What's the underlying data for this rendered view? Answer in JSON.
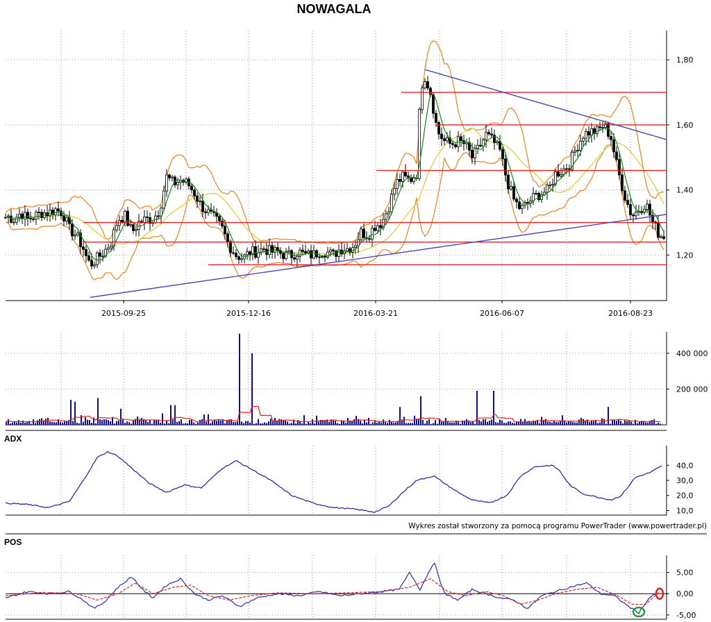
{
  "chart_data": [
    {
      "panel": "price",
      "type": "candlestick",
      "title": "NOWAGALA",
      "x_tick_labels": [
        "2015-09-25",
        "2015-12-16",
        "2016-03-21",
        "2016-06-07",
        "2016-08-23"
      ],
      "y_tick_labels": [
        "1,80",
        "1,60",
        "1,40",
        "1,20"
      ],
      "y_ticks": [
        1.8,
        1.6,
        1.4,
        1.2
      ],
      "ylim": [
        1.06,
        1.89
      ],
      "grid": true,
      "close_points": [
        [
          0,
          1.3
        ],
        [
          10,
          1.32
        ],
        [
          20,
          1.31
        ],
        [
          30,
          1.33
        ],
        [
          40,
          1.31
        ],
        [
          50,
          1.32
        ],
        [
          60,
          1.33
        ],
        [
          70,
          1.33
        ],
        [
          80,
          1.34
        ],
        [
          90,
          1.33
        ],
        [
          100,
          1.28
        ],
        [
          110,
          1.26
        ],
        [
          120,
          1.22
        ],
        [
          125,
          1.19
        ],
        [
          130,
          1.17
        ],
        [
          140,
          1.19
        ],
        [
          150,
          1.21
        ],
        [
          160,
          1.24
        ],
        [
          170,
          1.31
        ],
        [
          180,
          1.32
        ],
        [
          190,
          1.27
        ],
        [
          200,
          1.3
        ],
        [
          210,
          1.31
        ],
        [
          220,
          1.31
        ],
        [
          230,
          1.34
        ],
        [
          240,
          1.44
        ],
        [
          250,
          1.42
        ],
        [
          260,
          1.43
        ],
        [
          270,
          1.42
        ],
        [
          280,
          1.39
        ],
        [
          290,
          1.35
        ],
        [
          300,
          1.33
        ],
        [
          310,
          1.31
        ],
        [
          320,
          1.28
        ],
        [
          330,
          1.23
        ],
        [
          340,
          1.2
        ],
        [
          350,
          1.19
        ],
        [
          360,
          1.21
        ],
        [
          370,
          1.21
        ],
        [
          380,
          1.22
        ],
        [
          390,
          1.21
        ],
        [
          400,
          1.21
        ],
        [
          410,
          1.2
        ],
        [
          420,
          1.2
        ],
        [
          430,
          1.21
        ],
        [
          440,
          1.2
        ],
        [
          450,
          1.2
        ],
        [
          460,
          1.21
        ],
        [
          470,
          1.21
        ],
        [
          480,
          1.2
        ],
        [
          490,
          1.22
        ],
        [
          500,
          1.22
        ],
        [
          510,
          1.23
        ],
        [
          520,
          1.27
        ],
        [
          530,
          1.26
        ],
        [
          540,
          1.29
        ],
        [
          550,
          1.3
        ],
        [
          560,
          1.35
        ],
        [
          570,
          1.42
        ],
        [
          580,
          1.44
        ],
        [
          590,
          1.43
        ],
        [
          600,
          1.45
        ],
        [
          605,
          1.68
        ],
        [
          610,
          1.76
        ],
        [
          620,
          1.7
        ],
        [
          630,
          1.58
        ],
        [
          640,
          1.55
        ],
        [
          650,
          1.54
        ],
        [
          660,
          1.55
        ],
        [
          670,
          1.54
        ],
        [
          680,
          1.5
        ],
        [
          690,
          1.53
        ],
        [
          700,
          1.57
        ],
        [
          710,
          1.55
        ],
        [
          720,
          1.52
        ],
        [
          730,
          1.43
        ],
        [
          740,
          1.37
        ],
        [
          750,
          1.34
        ],
        [
          760,
          1.36
        ],
        [
          770,
          1.38
        ],
        [
          780,
          1.39
        ],
        [
          790,
          1.4
        ],
        [
          800,
          1.45
        ],
        [
          810,
          1.46
        ],
        [
          820,
          1.48
        ],
        [
          830,
          1.53
        ],
        [
          840,
          1.57
        ],
        [
          850,
          1.58
        ],
        [
          860,
          1.58
        ],
        [
          870,
          1.6
        ],
        [
          880,
          1.56
        ],
        [
          890,
          1.46
        ],
        [
          900,
          1.38
        ],
        [
          910,
          1.32
        ],
        [
          920,
          1.34
        ],
        [
          930,
          1.36
        ],
        [
          940,
          1.3
        ],
        [
          950,
          1.26
        ]
      ],
      "reference_levels": [
        {
          "y": 1.7,
          "x_start": 578,
          "x_end": 960
        },
        {
          "y": 1.6,
          "x_start": 628,
          "x_end": 960
        },
        {
          "y": 1.46,
          "x_start": 542,
          "x_end": 960
        },
        {
          "y": 1.3,
          "x_start": 120,
          "x_end": 960
        },
        {
          "y": 1.24,
          "x_start": 120,
          "x_end": 960
        },
        {
          "y": 1.17,
          "x_start": 300,
          "x_end": 960
        }
      ],
      "trendlines": [
        {
          "from": [
            130,
            1.07
          ],
          "to": [
            960,
            1.325
          ]
        },
        {
          "from": [
            612,
            1.77
          ],
          "to": [
            960,
            1.555
          ]
        }
      ],
      "series_colors": {
        "candles": "#000000",
        "sma_short": "#118a11",
        "sma_long": "#d7d040",
        "bands": "#e88a2e",
        "levels": "#e02020",
        "trendlines": "#3c3ca8"
      }
    },
    {
      "panel": "volume",
      "type": "bar",
      "y_tick_labels": [
        "400 000",
        "200 000"
      ],
      "y_ticks": [
        400000,
        200000
      ],
      "ylim": [
        0,
        520000
      ],
      "spikes": [
        [
          102,
          140000
        ],
        [
          108,
          130000
        ],
        [
          142,
          150000
        ],
        [
          175,
          90000
        ],
        [
          245,
          110000
        ],
        [
          253,
          110000
        ],
        [
          344,
          510000
        ],
        [
          362,
          400000
        ],
        [
          576,
          100000
        ],
        [
          606,
          160000
        ],
        [
          686,
          190000
        ],
        [
          712,
          190000
        ],
        [
          876,
          100000
        ]
      ],
      "colors": {
        "bars": "#0a0a96",
        "average": "#e02020"
      }
    },
    {
      "panel": "ADX",
      "type": "line",
      "label": "ADX",
      "y_tick_labels": [
        "40,0",
        "30,0",
        "20,0",
        "10,0"
      ],
      "y_ticks": [
        40,
        30,
        20,
        10
      ],
      "ylim": [
        7,
        53
      ],
      "points": [
        [
          8,
          15
        ],
        [
          40,
          14
        ],
        [
          70,
          12
        ],
        [
          100,
          16
        ],
        [
          120,
          30
        ],
        [
          140,
          45
        ],
        [
          155,
          49
        ],
        [
          170,
          46
        ],
        [
          190,
          38
        ],
        [
          215,
          28
        ],
        [
          240,
          22
        ],
        [
          265,
          27
        ],
        [
          290,
          25
        ],
        [
          320,
          38
        ],
        [
          340,
          43
        ],
        [
          360,
          38
        ],
        [
          390,
          30
        ],
        [
          420,
          20
        ],
        [
          450,
          15
        ],
        [
          480,
          12
        ],
        [
          510,
          11
        ],
        [
          540,
          9
        ],
        [
          560,
          13
        ],
        [
          580,
          22
        ],
        [
          600,
          30
        ],
        [
          625,
          33
        ],
        [
          640,
          28
        ],
        [
          660,
          22
        ],
        [
          680,
          17
        ],
        [
          705,
          15
        ],
        [
          730,
          20
        ],
        [
          750,
          33
        ],
        [
          770,
          39
        ],
        [
          795,
          40
        ],
        [
          805,
          37
        ],
        [
          820,
          27
        ],
        [
          840,
          21
        ],
        [
          860,
          19
        ],
        [
          880,
          17
        ],
        [
          895,
          20
        ],
        [
          915,
          32
        ],
        [
          935,
          35
        ],
        [
          955,
          40
        ]
      ],
      "line_color": "#2a2aa8"
    },
    {
      "panel": "POS",
      "type": "line",
      "label": "POS",
      "y_tick_labels": [
        "5,00",
        "0,00",
        "-5,00"
      ],
      "y_ticks": [
        5,
        0,
        -5
      ],
      "ylim": [
        -6,
        9
      ],
      "series": [
        {
          "points": [
            [
              8,
              -1
            ],
            [
              40,
              0.5
            ],
            [
              70,
              0
            ],
            [
              100,
              0.5
            ],
            [
              120,
              -1.5
            ],
            [
              135,
              -3.5
            ],
            [
              150,
              -2
            ],
            [
              170,
              1.5
            ],
            [
              190,
              4
            ],
            [
              205,
              1
            ],
            [
              220,
              -1
            ],
            [
              240,
              2
            ],
            [
              260,
              3.5
            ],
            [
              280,
              0
            ],
            [
              300,
              -1.5
            ],
            [
              320,
              -0.5
            ],
            [
              345,
              -3
            ],
            [
              370,
              -1
            ],
            [
              400,
              0
            ],
            [
              430,
              -0.5
            ],
            [
              460,
              0.5
            ],
            [
              490,
              -0.5
            ],
            [
              520,
              0
            ],
            [
              550,
              0.5
            ],
            [
              575,
              1
            ],
            [
              590,
              5
            ],
            [
              605,
              1
            ],
            [
              625,
              7.5
            ],
            [
              640,
              0
            ],
            [
              660,
              -1.5
            ],
            [
              680,
              1
            ],
            [
              700,
              0
            ],
            [
              720,
              -1
            ],
            [
              740,
              -1.5
            ],
            [
              760,
              -3.5
            ],
            [
              780,
              -0.5
            ],
            [
              800,
              0.5
            ],
            [
              820,
              1.5
            ],
            [
              845,
              2.5
            ],
            [
              865,
              0
            ],
            [
              885,
              -0.5
            ],
            [
              905,
              -3
            ],
            [
              920,
              -4.5
            ],
            [
              935,
              -1
            ],
            [
              945,
              0
            ]
          ]
        },
        {
          "points": [
            [
              8,
              -0.5
            ],
            [
              60,
              0.3
            ],
            [
              110,
              0
            ],
            [
              140,
              -1.5
            ],
            [
              170,
              0
            ],
            [
              195,
              2.5
            ],
            [
              220,
              0
            ],
            [
              250,
              1.5
            ],
            [
              275,
              2
            ],
            [
              300,
              -0.5
            ],
            [
              330,
              -1.5
            ],
            [
              360,
              -0.5
            ],
            [
              400,
              0.2
            ],
            [
              450,
              0
            ],
            [
              500,
              0.2
            ],
            [
              550,
              0.5
            ],
            [
              590,
              1.5
            ],
            [
              620,
              3.5
            ],
            [
              645,
              0.5
            ],
            [
              670,
              -0.5
            ],
            [
              700,
              0.5
            ],
            [
              725,
              -0.5
            ],
            [
              750,
              -2.5
            ],
            [
              775,
              -1.5
            ],
            [
              800,
              0
            ],
            [
              830,
              1
            ],
            [
              860,
              1.5
            ],
            [
              890,
              -0.5
            ],
            [
              910,
              -2.5
            ],
            [
              930,
              -2.5
            ],
            [
              950,
              0.5
            ]
          ]
        }
      ],
      "colors": {
        "signal": "#2a2aa8",
        "average": "#e02020",
        "marker_buy": "#1aa03a",
        "marker_sell": "#e02020"
      }
    }
  ],
  "footer": {
    "credit": "Wykres został stworzony za pomocą programu PowerTrader (www.powertrader.pl)"
  }
}
